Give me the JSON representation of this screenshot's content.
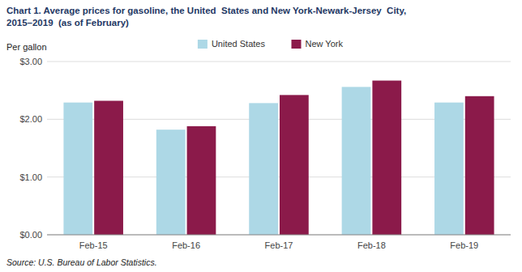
{
  "chart_data": {
    "type": "bar",
    "title": "Chart 1. Average prices for gasoline, the United  States and New York-Newark-Jersey  City,",
    "subtitle": "2015–2019  (as of February)",
    "y_label": "Per gallon",
    "annotations": [
      "Source: U.S. Bureau of Labor Statistics."
    ],
    "categories": [
      "Feb-15",
      "Feb-16",
      "Feb-17",
      "Feb-18",
      "Feb-19"
    ],
    "series": [
      {
        "name": "United States",
        "color": "#ADD8E6",
        "values": [
          2.29,
          1.82,
          2.28,
          2.56,
          2.29
        ]
      },
      {
        "name": "New York",
        "color": "#8B1A4A",
        "values": [
          2.32,
          1.88,
          2.42,
          2.67,
          2.4
        ]
      }
    ],
    "ylim": [
      0,
      3.0
    ],
    "yticks": [
      {
        "value": 0.0,
        "label": "$0.00"
      },
      {
        "value": 1.0,
        "label": "$1.00"
      },
      {
        "value": 2.0,
        "label": "$2.00"
      },
      {
        "value": 3.0,
        "label": "$3.00"
      }
    ],
    "grid": true,
    "legend": "top"
  }
}
